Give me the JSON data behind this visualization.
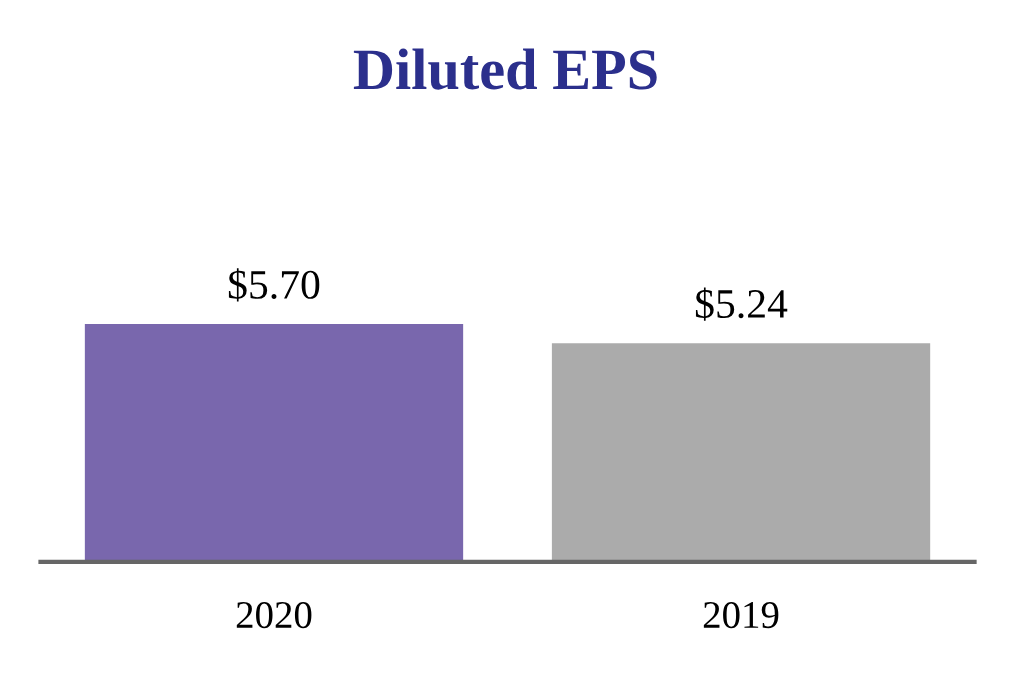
{
  "chart_data": {
    "type": "bar",
    "title": "Diluted EPS",
    "categories": [
      "2020",
      "2019"
    ],
    "values": [
      5.7,
      5.24
    ],
    "colors": [
      "#7967ad",
      "#ababab"
    ],
    "value_labels": [
      "$5.70",
      "$5.24"
    ],
    "grid": false,
    "legend": false
  }
}
